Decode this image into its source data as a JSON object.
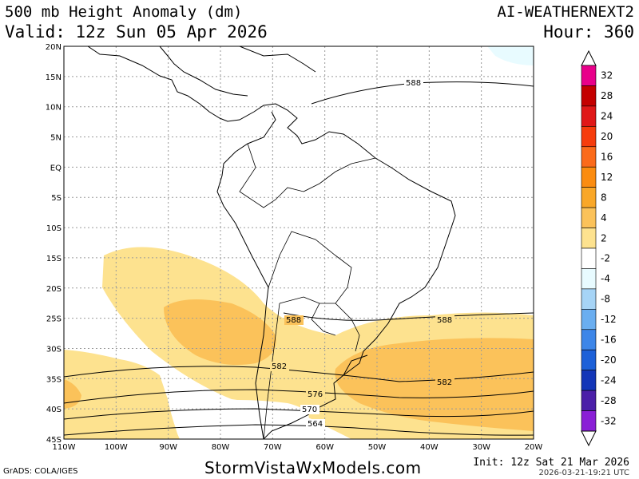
{
  "header": {
    "title": "500 mb Height Anomaly (dm)",
    "valid": "Valid: 12z Sun 05 Apr 2026",
    "model": "AI-WEATHERNEXT2",
    "hour": "Hour: 360"
  },
  "footer": {
    "brand": "StormVistaWxModels.com",
    "grads": "GrADS: COLA/IGES",
    "init": "Init: 12z Sat 21 Mar 2026",
    "stamp": "2026-03-21-19:21 UTC"
  },
  "map": {
    "lat_labels": [
      "20N",
      "15N",
      "10N",
      "5N",
      "EQ",
      "5S",
      "10S",
      "15S",
      "20S",
      "25S",
      "30S",
      "35S",
      "40S",
      "45S"
    ],
    "lon_labels": [
      "110W",
      "100W",
      "90W",
      "80W",
      "70W",
      "60W",
      "50W",
      "40W",
      "30W",
      "20W"
    ],
    "contour_labels": [
      "588",
      "588",
      "588",
      "582",
      "582",
      "576",
      "570",
      "564"
    ],
    "colors": {
      "anom_2_4": "#fde28f",
      "anom_4_8": "#fbc25a",
      "anom_8_12": "#f9a728",
      "neg_2": "#e8fbff",
      "land": "#ffffff"
    }
  },
  "colorbar": {
    "labels": [
      "32",
      "28",
      "24",
      "20",
      "16",
      "12",
      "8",
      "4",
      "2",
      "-2",
      "-4",
      "-8",
      "-12",
      "-16",
      "-20",
      "-24",
      "-28",
      "-32"
    ],
    "colors": [
      "#e8008a",
      "#c40000",
      "#e01818",
      "#f63c0c",
      "#fb6a1a",
      "#fb8c10",
      "#f9a728",
      "#fbc25a",
      "#fde28f",
      "#ffffff",
      "#e8fbff",
      "#a6d4f6",
      "#6aaef0",
      "#3d86e8",
      "#1c60d8",
      "#1336b8",
      "#4b1fa8",
      "#8a1fd6"
    ]
  }
}
